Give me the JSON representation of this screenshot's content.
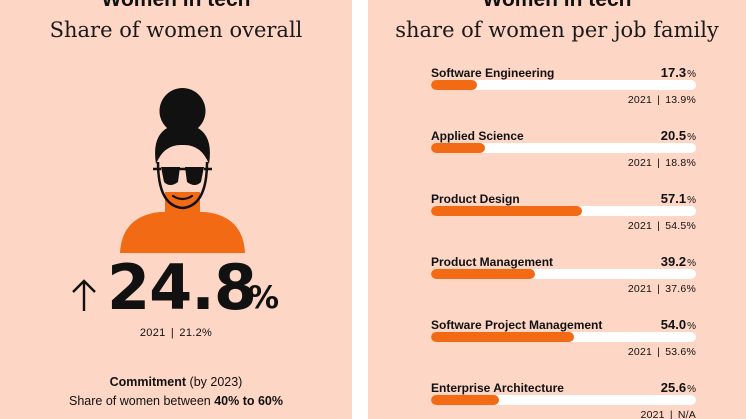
{
  "colors": {
    "background": "#fdd6c5",
    "accent": "#f26a14",
    "bar_track": "#ffffff",
    "text": "#111111"
  },
  "left": {
    "title": "Women in tech",
    "subtitle": "Share of women overall",
    "illustration_icon": "woman-with-sunglasses-icon",
    "trend_icon": "arrow-up-icon",
    "value": "24.8",
    "value_unit": "%",
    "previous_year": "2021",
    "previous_value": "21.2%",
    "commitment_label": "Commitment",
    "commitment_note": "(by 2023)",
    "commitment_prefix": "Share of women between ",
    "commitment_range": "40% to 60%"
  },
  "right": {
    "title": "Women in tech",
    "subtitle": "share of women per job family"
  },
  "chart_data": {
    "type": "bar",
    "orientation": "horizontal",
    "title": "share of women per job family",
    "xlim": [
      0,
      100
    ],
    "unit": "%",
    "rows": [
      {
        "label": "Software Engineering",
        "value": 17.3,
        "value_text": "17.3",
        "prev_year": "2021",
        "prev_value": "13.9%"
      },
      {
        "label": "Applied Science",
        "value": 20.5,
        "value_text": "20.5",
        "prev_year": "2021",
        "prev_value": "18.8%"
      },
      {
        "label": "Product Design",
        "value": 57.1,
        "value_text": "57.1",
        "prev_year": "2021",
        "prev_value": "54.5%"
      },
      {
        "label": "Product Management",
        "value": 39.2,
        "value_text": "39.2",
        "prev_year": "2021",
        "prev_value": "37.6%"
      },
      {
        "label": "Software Project Management",
        "value": 54.0,
        "value_text": "54.0",
        "prev_year": "2021",
        "prev_value": "53.6%"
      },
      {
        "label": "Enterprise Architecture",
        "value": 25.6,
        "value_text": "25.6",
        "prev_year": "2021",
        "prev_value": "N/A"
      }
    ]
  }
}
